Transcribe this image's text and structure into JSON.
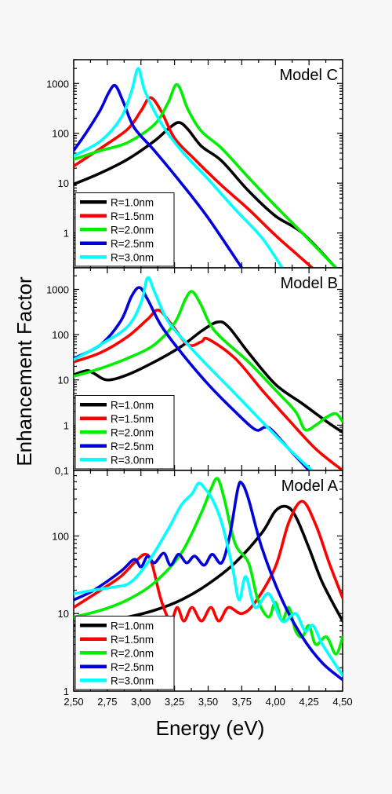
{
  "figure": {
    "ylabel": "Enhancement Factor",
    "xlabel": "Energy (eV)",
    "x_tick_labels": [
      "2,50",
      "2,75",
      "3,00",
      "3,25",
      "3,50",
      "3,75",
      "4,00",
      "4,25",
      "4,50"
    ],
    "colors": {
      "R=1.0nm": "#000000",
      "R=1.5nm": "#ff0000",
      "R=2.0nm": "#00ee00",
      "R=2.5nm": "#0000dd",
      "R=3.0nm": "#00ffff"
    }
  },
  "chart_data": [
    {
      "type": "line",
      "title": "Model C",
      "xlabel": "Energy (eV)",
      "ylabel": "Enhancement Factor",
      "xlim": [
        2.5,
        4.5
      ],
      "ylim": [
        0.2,
        3000
      ],
      "y_scale": "log",
      "y_tick_labels": [
        "1",
        "10",
        "100",
        "1000"
      ],
      "y_ticks": [
        1,
        10,
        100,
        1000
      ],
      "legend": "bottom-left",
      "series": [
        {
          "name": "R=1.0nm",
          "x": [
            2.5,
            2.7,
            2.9,
            3.1,
            3.2,
            3.28,
            3.35,
            3.45,
            3.6,
            3.8,
            4.0,
            4.2,
            4.45
          ],
          "values": [
            9.5,
            16,
            30,
            70,
            120,
            165,
            120,
            55,
            28,
            7,
            2.2,
            1,
            0.2
          ]
        },
        {
          "name": "R=1.5nm",
          "x": [
            2.5,
            2.7,
            2.9,
            3.0,
            3.07,
            3.15,
            3.25,
            3.4,
            3.6,
            3.8,
            4.0,
            4.2,
            4.4
          ],
          "values": [
            22,
            50,
            120,
            280,
            520,
            280,
            80,
            30,
            9,
            3,
            0.9,
            0.3,
            0.1
          ]
        },
        {
          "name": "R=2.0nm",
          "x": [
            2.5,
            2.7,
            2.9,
            3.1,
            3.2,
            3.27,
            3.35,
            3.45,
            3.6,
            3.8,
            4.0,
            4.2,
            4.45
          ],
          "values": [
            30,
            45,
            65,
            150,
            400,
            950,
            300,
            110,
            50,
            13,
            3.5,
            1,
            0.2
          ]
        },
        {
          "name": "R=2.5nm",
          "x": [
            2.5,
            2.6,
            2.7,
            2.76,
            2.81,
            2.87,
            2.95,
            3.1,
            3.3,
            3.5,
            3.75
          ],
          "values": [
            45,
            110,
            300,
            650,
            900,
            420,
            130,
            45,
            10,
            2,
            0.2
          ]
        },
        {
          "name": "R=3.0nm",
          "x": [
            2.5,
            2.7,
            2.85,
            2.93,
            2.98,
            3.03,
            3.15,
            3.3,
            3.5,
            3.7,
            3.9,
            4.05
          ],
          "values": [
            35,
            70,
            200,
            700,
            2000,
            700,
            160,
            45,
            12,
            3,
            0.8,
            0.2
          ]
        }
      ]
    },
    {
      "type": "line",
      "title": "Model B",
      "xlabel": "Energy (eV)",
      "ylabel": "Enhancement Factor",
      "xlim": [
        2.5,
        4.5
      ],
      "ylim": [
        0.1,
        3000
      ],
      "y_scale": "log",
      "y_tick_labels": [
        "0,1",
        "1",
        "10",
        "100",
        "1000"
      ],
      "y_ticks": [
        0.1,
        1,
        10,
        100,
        1000
      ],
      "legend": "bottom-left",
      "series": [
        {
          "name": "R=1.0nm",
          "x": [
            2.5,
            2.6,
            2.65,
            2.75,
            2.9,
            3.1,
            3.3,
            3.45,
            3.57,
            3.65,
            3.8,
            4.0,
            4.2,
            4.4,
            4.5
          ],
          "values": [
            13,
            16,
            14,
            10,
            13,
            25,
            55,
            120,
            190,
            150,
            40,
            8,
            3,
            1.1,
            0.7
          ]
        },
        {
          "name": "R=1.5nm",
          "x": [
            2.5,
            2.7,
            2.9,
            3.05,
            3.13,
            3.22,
            3.35,
            3.45,
            3.5,
            3.7,
            3.9,
            4.1,
            4.3,
            4.5
          ],
          "values": [
            25,
            40,
            90,
            220,
            350,
            180,
            60,
            70,
            80,
            30,
            6,
            1.3,
            0.3,
            0.1
          ]
        },
        {
          "name": "R=2.0nm",
          "x": [
            2.5,
            2.7,
            2.9,
            3.1,
            3.25,
            3.33,
            3.38,
            3.44,
            3.55,
            3.8,
            4.0,
            4.15,
            4.22,
            4.3,
            4.38,
            4.45,
            4.5
          ],
          "values": [
            12,
            18,
            30,
            60,
            180,
            600,
            900,
            500,
            120,
            25,
            6,
            2,
            0.8,
            1,
            1.5,
            1.8,
            1.2
          ]
        },
        {
          "name": "R=2.5nm",
          "x": [
            2.5,
            2.7,
            2.85,
            2.93,
            2.99,
            3.05,
            3.15,
            3.3,
            3.5,
            3.7,
            3.85,
            3.92,
            3.97,
            4.1,
            4.25
          ],
          "values": [
            30,
            60,
            200,
            700,
            1100,
            600,
            160,
            40,
            8,
            2,
            0.8,
            0.9,
            0.8,
            0.3,
            0.1
          ]
        },
        {
          "name": "R=3.0nm",
          "x": [
            2.5,
            2.7,
            2.9,
            3.0,
            3.05,
            3.1,
            3.2,
            3.35,
            3.5,
            3.7,
            3.9,
            4.1,
            4.27
          ],
          "values": [
            28,
            60,
            150,
            500,
            1800,
            900,
            200,
            60,
            20,
            5,
            1.2,
            0.3,
            0.1
          ]
        }
      ]
    },
    {
      "type": "line",
      "title": "Model A",
      "xlabel": "Energy (eV)",
      "ylabel": "Enhancement Factor",
      "xlim": [
        2.5,
        4.5
      ],
      "ylim": [
        1,
        700
      ],
      "y_scale": "log",
      "y_tick_labels": [
        "1",
        "10",
        "100"
      ],
      "y_ticks": [
        1,
        10,
        100
      ],
      "legend": "bottom-left",
      "series": [
        {
          "name": "R=1.0nm",
          "x": [
            2.5,
            2.7,
            2.9,
            3.1,
            3.3,
            3.5,
            3.7,
            3.9,
            4.0,
            4.08,
            4.15,
            4.25,
            4.35,
            4.5
          ],
          "values": [
            7,
            8,
            9,
            11,
            15,
            24,
            45,
            110,
            210,
            240,
            180,
            70,
            25,
            8
          ]
        },
        {
          "name": "R=1.5nm",
          "x": [
            2.5,
            2.7,
            2.85,
            2.95,
            3.03,
            3.08,
            3.15,
            3.22,
            3.27,
            3.32,
            3.38,
            3.45,
            3.52,
            3.58,
            3.65,
            3.75,
            3.85,
            4.0,
            4.1,
            4.2,
            4.3,
            4.4,
            4.5
          ],
          "values": [
            12,
            20,
            30,
            45,
            58,
            45,
            15,
            8,
            12,
            8,
            12,
            8,
            12,
            8,
            12,
            10,
            14,
            40,
            150,
            280,
            140,
            45,
            16
          ]
        },
        {
          "name": "R=2.0nm",
          "x": [
            2.5,
            2.7,
            2.9,
            3.1,
            3.3,
            3.45,
            3.52,
            3.57,
            3.62,
            3.7,
            3.8,
            3.87,
            3.95,
            4.0,
            4.05,
            4.1,
            4.15,
            4.2,
            4.25,
            4.3,
            4.38,
            4.45,
            4.5
          ],
          "values": [
            9,
            11,
            15,
            25,
            60,
            200,
            400,
            550,
            300,
            80,
            45,
            15,
            9,
            14,
            8,
            12,
            6,
            5,
            7,
            4,
            5,
            3,
            5
          ]
        },
        {
          "name": "R=2.5nm",
          "x": [
            2.5,
            2.65,
            2.85,
            2.95,
            3.0,
            3.05,
            3.1,
            3.17,
            3.22,
            3.28,
            3.34,
            3.4,
            3.47,
            3.53,
            3.6,
            3.66,
            3.72,
            3.75,
            3.8,
            3.9,
            4.05,
            4.2,
            4.35,
            4.5
          ],
          "values": [
            15,
            20,
            35,
            50,
            40,
            55,
            45,
            60,
            42,
            58,
            45,
            55,
            42,
            58,
            45,
            100,
            400,
            480,
            300,
            70,
            15,
            5,
            2.3,
            1.4
          ]
        },
        {
          "name": "R=3.0nm",
          "x": [
            2.5,
            2.65,
            2.8,
            2.92,
            3.05,
            3.2,
            3.3,
            3.38,
            3.43,
            3.48,
            3.53,
            3.6,
            3.68,
            3.73,
            3.78,
            3.85,
            3.95,
            4.05,
            4.15,
            4.22,
            4.28,
            4.35,
            4.5
          ],
          "values": [
            18,
            20,
            22,
            25,
            45,
            120,
            250,
            350,
            480,
            400,
            300,
            150,
            40,
            15,
            30,
            12,
            18,
            8,
            10,
            6,
            7,
            4,
            1.6
          ]
        }
      ]
    }
  ]
}
